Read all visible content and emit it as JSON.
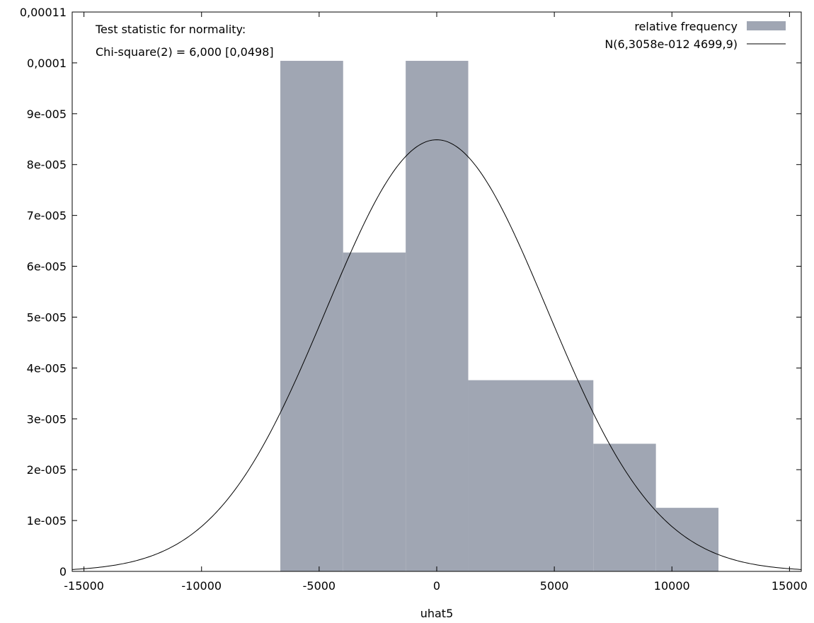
{
  "chart_data": {
    "type": "bar",
    "xlabel": "uhat5",
    "ylabel": "",
    "xlim": [
      -15500,
      15500
    ],
    "ylim": [
      0,
      0.00011
    ],
    "x_ticks": [
      {
        "value": -15000,
        "label": "-15000"
      },
      {
        "value": -10000,
        "label": "-10000"
      },
      {
        "value": -5000,
        "label": "-5000"
      },
      {
        "value": 0,
        "label": "0"
      },
      {
        "value": 5000,
        "label": "5000"
      },
      {
        "value": 10000,
        "label": "10000"
      },
      {
        "value": 15000,
        "label": "15000"
      }
    ],
    "y_ticks": [
      {
        "value": 0,
        "label": "0"
      },
      {
        "value": 1e-05,
        "label": "1e-005"
      },
      {
        "value": 2e-05,
        "label": "2e-005"
      },
      {
        "value": 3e-05,
        "label": "3e-005"
      },
      {
        "value": 4e-05,
        "label": "4e-005"
      },
      {
        "value": 5e-05,
        "label": "5e-005"
      },
      {
        "value": 6e-05,
        "label": "6e-005"
      },
      {
        "value": 7e-05,
        "label": "7e-005"
      },
      {
        "value": 8e-05,
        "label": "8e-005"
      },
      {
        "value": 9e-05,
        "label": "9e-005"
      },
      {
        "value": 0.0001,
        "label": "0,0001"
      },
      {
        "value": 0.00011,
        "label": "0,00011"
      }
    ],
    "annotations": [
      "Test statistic for normality:",
      "Chi-square(2) = 6,000 [0,0498]"
    ],
    "series": [
      {
        "name": "relative frequency",
        "kind": "histogram",
        "color": "#a0a6b3",
        "bins": [
          {
            "x0": -6650,
            "x1": -3980,
            "y": 0.0001004
          },
          {
            "x0": -3980,
            "x1": -1320,
            "y": 6.27e-05
          },
          {
            "x0": -1320,
            "x1": 1340,
            "y": 0.0001004
          },
          {
            "x0": 1340,
            "x1": 6660,
            "y": 3.76e-05
          },
          {
            "x0": 6660,
            "x1": 9320,
            "y": 2.51e-05
          },
          {
            "x0": 9320,
            "x1": 11980,
            "y": 1.25e-05
          }
        ]
      },
      {
        "name": "N(6,3058e-012 4699,9)",
        "kind": "normal-curve",
        "color": "#000000",
        "mean": 0,
        "sd": 4699.9
      }
    ],
    "legend_position": "top-right",
    "grid": false
  }
}
